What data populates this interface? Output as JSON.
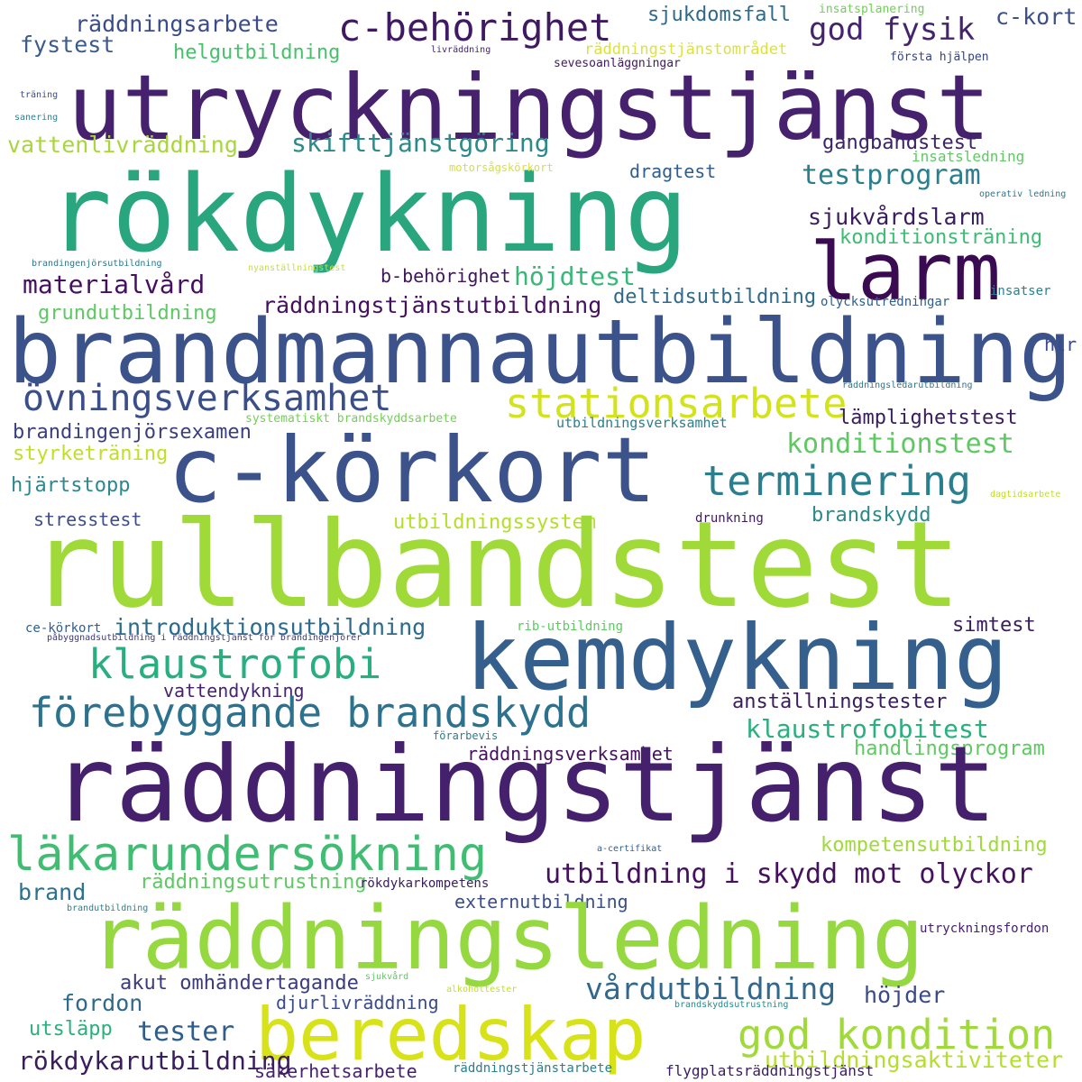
{
  "words": [
    {
      "text": "utryckningstjänst",
      "color": "#46216d"
    },
    {
      "text": "rökdykning",
      "color": "#29a67e"
    },
    {
      "text": "larm",
      "color": "#3b0b52"
    },
    {
      "text": "c-behörighet",
      "color": "#3f1a62"
    },
    {
      "text": "räddningsarbete",
      "color": "#3a4d8a"
    },
    {
      "text": "fystest",
      "color": "#3a5b8b"
    },
    {
      "text": "helgutbildning",
      "color": "#48c06c"
    },
    {
      "text": "vattenlivräddning",
      "color": "#a8d63c"
    },
    {
      "text": "skifttjänstgöring",
      "color": "#2d8a8a"
    },
    {
      "text": "god fysik",
      "color": "#45246e"
    },
    {
      "text": "sjukdomsfall",
      "color": "#2f6a8b"
    },
    {
      "text": "c-kort",
      "color": "#3d5186"
    },
    {
      "text": "insatsplanering",
      "color": "#70cf57"
    },
    {
      "text": "räddningstjänstområdet",
      "color": "#dce23a"
    },
    {
      "text": "livräddning",
      "color": "#46236f"
    },
    {
      "text": "sevesoanläggningar",
      "color": "#45156a"
    },
    {
      "text": "första hjälpen",
      "color": "#38457f"
    },
    {
      "text": "träning",
      "color": "#3a4f8a"
    },
    {
      "text": "sanering",
      "color": "#2d7f8e"
    },
    {
      "text": "gångbandstest",
      "color": "#3b2468"
    },
    {
      "text": "insatsledning",
      "color": "#5ec963"
    },
    {
      "text": "motorsågskörkort",
      "color": "#d7e03b"
    },
    {
      "text": "dragtest",
      "color": "#2f5e8c"
    },
    {
      "text": "testprogram",
      "color": "#2a7f8e"
    },
    {
      "text": "operativ ledning",
      "color": "#2a788e"
    },
    {
      "text": "sjukvårdslarm",
      "color": "#3a1d5e"
    },
    {
      "text": "konditionsträning",
      "color": "#3dbc74"
    },
    {
      "text": "brandingenjörsutbildning",
      "color": "#2a788e"
    },
    {
      "text": "nyanställningstest",
      "color": "#c5df3c"
    },
    {
      "text": "höjdtest",
      "color": "#37b878"
    },
    {
      "text": "materialvård",
      "color": "#45115f"
    },
    {
      "text": "b-behörighet",
      "color": "#3e1659"
    },
    {
      "text": "deltidsutbildning",
      "color": "#2f6a8b"
    },
    {
      "text": "insatser",
      "color": "#2a7f8e"
    },
    {
      "text": "olycksutredningar",
      "color": "#2f5e8c"
    },
    {
      "text": "grundutbildning",
      "color": "#5ec963"
    },
    {
      "text": "räddningstjänstutbildning",
      "color": "#45115f"
    },
    {
      "text": "brandmannautbildning",
      "color": "#3b528b"
    },
    {
      "text": "hlr",
      "color": "#3a4c88"
    },
    {
      "text": "övningsverksamhet",
      "color": "#3a4f8a"
    },
    {
      "text": "stationsarbete",
      "color": "#d2e21b"
    },
    {
      "text": "räddningsledarutbildning",
      "color": "#2a788e"
    },
    {
      "text": "systematiskt brandskyddsarbete",
      "color": "#73d056"
    },
    {
      "text": "utbildningsverksamhet",
      "color": "#2a7f8e"
    },
    {
      "text": "lämplighetstest",
      "color": "#3a1d5e"
    },
    {
      "text": "brandingenjörsexamen",
      "color": "#3a3f7f"
    },
    {
      "text": "styrketräning",
      "color": "#c0df25"
    },
    {
      "text": "konditionstest",
      "color": "#5ec962"
    },
    {
      "text": "c-körkort",
      "color": "#3b528b"
    },
    {
      "text": "terminering",
      "color": "#2a7f8e"
    },
    {
      "text": "hjärtstopp",
      "color": "#2a888e"
    },
    {
      "text": "dagtidsarbete",
      "color": "#c0df25"
    },
    {
      "text": "stresstest",
      "color": "#3d4e8a"
    },
    {
      "text": "utbildningssystem",
      "color": "#b5de2b"
    },
    {
      "text": "drunkning",
      "color": "#3f1a62"
    },
    {
      "text": "brandskydd",
      "color": "#2a8a8a"
    },
    {
      "text": "rullbandstest",
      "color": "#a0da39"
    },
    {
      "text": "ce-körkort",
      "color": "#2f5e8c"
    },
    {
      "text": "påbyggnadsutbildning i räddningstjänst för brandingenjörer",
      "color": "#3e3a7f"
    },
    {
      "text": "introduktionsutbildning",
      "color": "#2a6b8e"
    },
    {
      "text": "rib-utbildning",
      "color": "#5ec962"
    },
    {
      "text": "simtest",
      "color": "#3a1d5e"
    },
    {
      "text": "kemdykning",
      "color": "#355f8d"
    },
    {
      "text": "klaustrofobi",
      "color": "#29af7f"
    },
    {
      "text": "vattendykning",
      "color": "#46236f"
    },
    {
      "text": "förebyggande brandskydd",
      "color": "#2c728e"
    },
    {
      "text": "anställningstester",
      "color": "#3a1d5e"
    },
    {
      "text": "klaustrofobitest",
      "color": "#2ab07f"
    },
    {
      "text": "förarbevis",
      "color": "#2a7f8e"
    },
    {
      "text": "räddningsverksamhet",
      "color": "#45115f"
    },
    {
      "text": "handlingsprogram",
      "color": "#5ec962"
    },
    {
      "text": "räddningstjänst",
      "color": "#45216d"
    },
    {
      "text": "läkarundersökning",
      "color": "#40bd72"
    },
    {
      "text": "a-certifikat",
      "color": "#2f5e8c"
    },
    {
      "text": "kompetensutbildning",
      "color": "#9fda3a"
    },
    {
      "text": "utbildning i skydd mot olyckor",
      "color": "#45115f"
    },
    {
      "text": "räddningsutrustning",
      "color": "#5ec962"
    },
    {
      "text": "rökdykarkompetens",
      "color": "#3a1d5e"
    },
    {
      "text": "brand",
      "color": "#2c728e"
    },
    {
      "text": "externutbildning",
      "color": "#3a4f8a"
    },
    {
      "text": "brandutbildning",
      "color": "#2a7f8e"
    },
    {
      "text": "utryckningsfordon",
      "color": "#45216d"
    },
    {
      "text": "räddningsledning",
      "color": "#95d840"
    },
    {
      "text": "akut omhändertagande",
      "color": "#3b3b80"
    },
    {
      "text": "sjukvård",
      "color": "#5ec962"
    },
    {
      "text": "alkoholtester",
      "color": "#c0df25"
    },
    {
      "text": "vårdutbildning",
      "color": "#31688e"
    },
    {
      "text": "fordon",
      "color": "#2f6a8b"
    },
    {
      "text": "djurlivräddning",
      "color": "#3a4c88"
    },
    {
      "text": "höjder",
      "color": "#3b4b8a"
    },
    {
      "text": "brandskyddsutrustning",
      "color": "#2a8a8a"
    },
    {
      "text": "utsläpp",
      "color": "#2ab07f"
    },
    {
      "text": "beredskap",
      "color": "#d8e219"
    },
    {
      "text": "tester",
      "color": "#2f5e8c"
    },
    {
      "text": "god kondition",
      "color": "#9fda3a"
    },
    {
      "text": "utbildningsaktiviteter",
      "color": "#b5de2b"
    },
    {
      "text": "rökdykarutbildning",
      "color": "#3a1d5e"
    },
    {
      "text": "säkerhetsarbete",
      "color": "#46216d"
    },
    {
      "text": "räddningstjänstarbete",
      "color": "#2a7f8e"
    },
    {
      "text": "flygplatsräddningstjänst",
      "color": "#3a1d5e"
    }
  ]
}
